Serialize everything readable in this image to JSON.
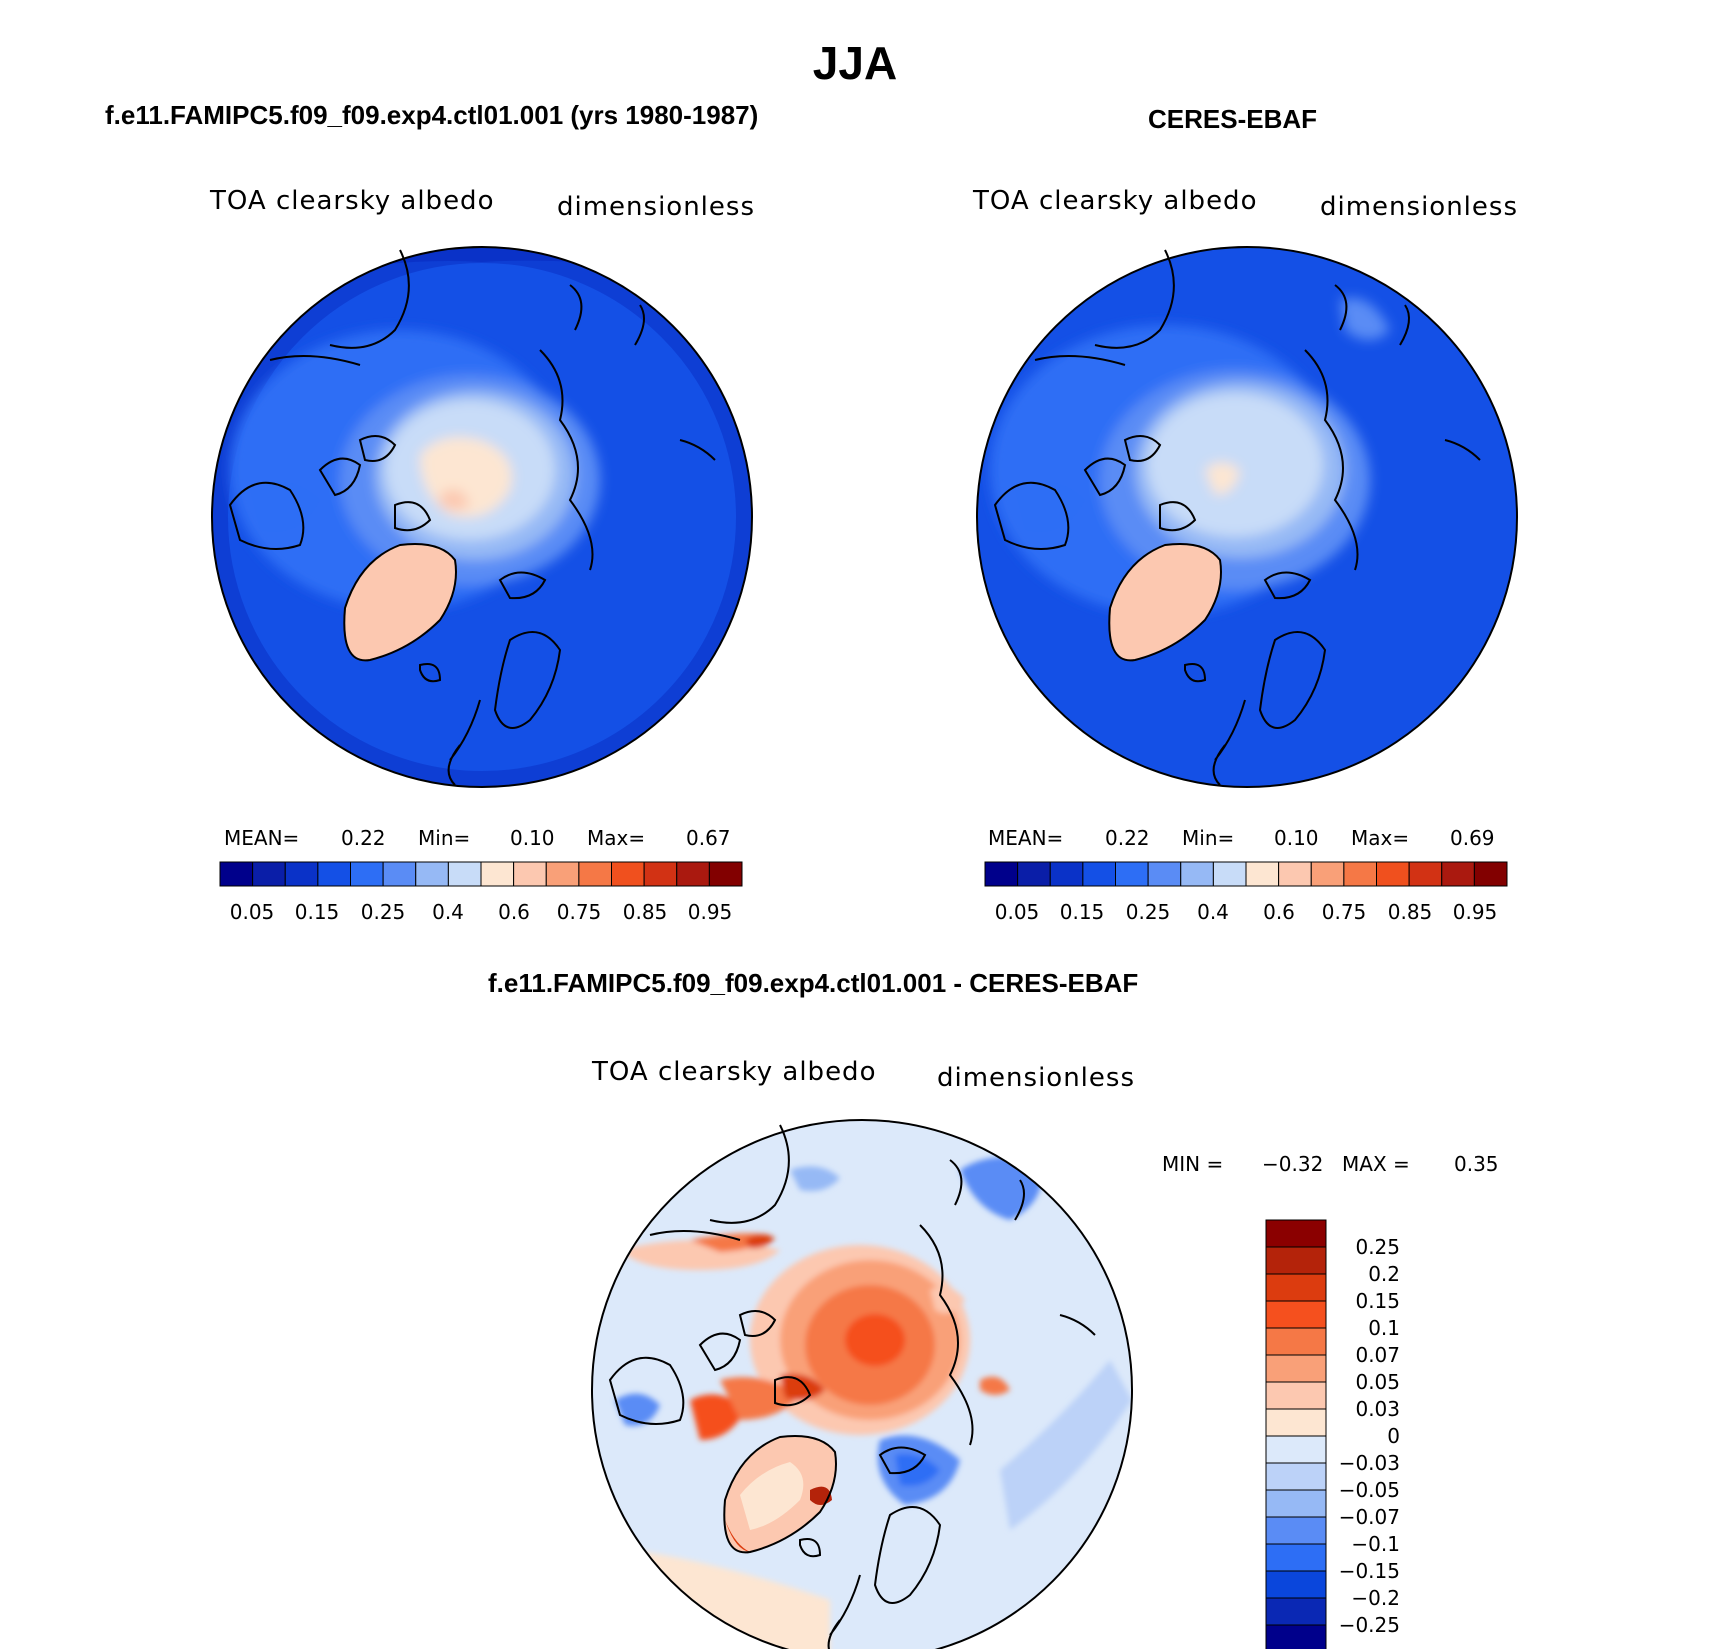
{
  "title": "JJA",
  "panels": [
    {
      "title": "f.e11.FAMIPC5.f09_f09.exp4.ctl01.001 (yrs 1980-1987)",
      "variable": "TOA clearsky albedo",
      "units": "dimensionless",
      "mean_label": "MEAN=",
      "mean": "0.22",
      "min_label": "Min=",
      "min": "0.10",
      "max_label": "Max=",
      "max": "0.67"
    },
    {
      "title": "CERES-EBAF",
      "variable": "TOA clearsky albedo",
      "units": "dimensionless",
      "mean_label": "MEAN=",
      "mean": "0.22",
      "min_label": "Min=",
      "min": "0.10",
      "max_label": "Max=",
      "max": "0.69"
    },
    {
      "title": "f.e11.FAMIPC5.f09_f09.exp4.ctl01.001 - CERES-EBAF",
      "variable": "TOA clearsky albedo",
      "units": "dimensionless",
      "min_label": "MIN =",
      "min": "−0.32",
      "max_label": "MAX =",
      "max": "0.35"
    }
  ],
  "colorbar_abs": {
    "labels": [
      "0.05",
      "0.15",
      "0.25",
      "0.4",
      "0.6",
      "0.75",
      "0.85",
      "0.95"
    ],
    "colors": [
      "#00008b",
      "#0a1ea8",
      "#0a32c8",
      "#1450e6",
      "#2d6ef5",
      "#5a8cf5",
      "#96b9f5",
      "#c8dcf8",
      "#fde6d2",
      "#fcc8b0",
      "#f9a078",
      "#f57846",
      "#f0501e",
      "#d23214",
      "#aa190f",
      "#820000"
    ]
  },
  "colorbar_diff": {
    "labels": [
      "0.25",
      "0.2",
      "0.15",
      "0.1",
      "0.07",
      "0.05",
      "0.03",
      "0",
      "−0.03",
      "−0.05",
      "−0.07",
      "−0.1",
      "−0.15",
      "−0.2",
      "−0.25"
    ],
    "colors": [
      "#8b0000",
      "#b4230a",
      "#dc3c0f",
      "#f5501e",
      "#f57846",
      "#f9a078",
      "#fcc8b0",
      "#fde6d2",
      "#dce9fa",
      "#bcd2f8",
      "#96b9f5",
      "#5a8cf5",
      "#2d6ef5",
      "#0a46dc",
      "#0a28b4",
      "#00008b"
    ]
  }
}
